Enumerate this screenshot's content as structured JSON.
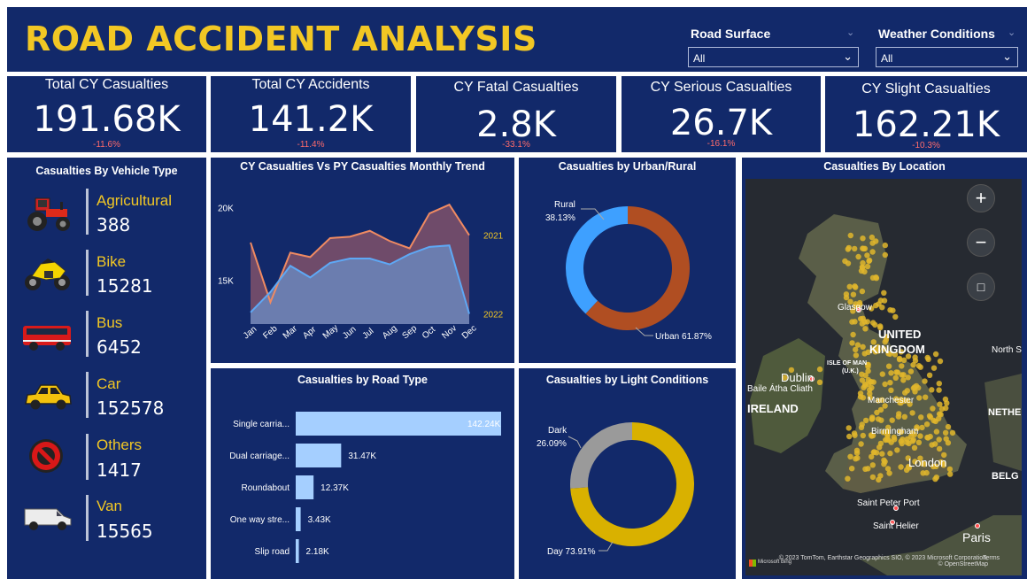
{
  "title": "ROAD ACCIDENT ANALYSIS",
  "filters": [
    {
      "label": "Road Surface",
      "value": "All"
    },
    {
      "label": "Weather Conditions",
      "value": "All"
    }
  ],
  "kpis": [
    {
      "title": "Total CY Casualties",
      "value": "191.68K",
      "delta": "-11.6%"
    },
    {
      "title": "Total CY Accidents",
      "value": "141.2K",
      "delta": "-11.4%"
    },
    {
      "title": "CY Fatal Casualties",
      "value": "2.8K",
      "delta": "-33.1%"
    },
    {
      "title": "CY Serious Casualties",
      "value": "26.7K",
      "delta": "-16.1%"
    },
    {
      "title": "CY Slight Casualties",
      "value": "162.21K",
      "delta": "-10.3%"
    }
  ],
  "vehicles": {
    "title": "Casualties By Vehicle Type",
    "items": [
      {
        "name": "Agricultural",
        "value": "388",
        "icon": "tractor-icon"
      },
      {
        "name": "Bike",
        "value": "15281",
        "icon": "motorbike-icon"
      },
      {
        "name": "Bus",
        "value": "6452",
        "icon": "bus-icon"
      },
      {
        "name": "Car",
        "value": "152578",
        "icon": "car-icon"
      },
      {
        "name": "Others",
        "value": "1417",
        "icon": "no-entry-icon"
      },
      {
        "name": "Van",
        "value": "15565",
        "icon": "van-icon"
      }
    ]
  },
  "colors": {
    "background": "#12296a",
    "accent": "#f2c724",
    "delta_negative": "#ff6b6b",
    "cy_line": "#ef8a62",
    "py_area": "#5ea8f5",
    "rural": "#3ea0ff",
    "urban": "#b04e22",
    "dark": "#9a9a9a",
    "day": "#d9b100",
    "road_bar": "#a5cfff"
  },
  "chart_data": [
    {
      "type": "area",
      "title": "CY Casualties Vs PY Casualties Monthly Trend",
      "categories": [
        "Jan",
        "Feb",
        "Mar",
        "Apr",
        "May",
        "Jun",
        "Jul",
        "Aug",
        "Sep",
        "Oct",
        "Nov",
        "Dec"
      ],
      "series": [
        {
          "name": "2021",
          "values": [
            17600,
            13500,
            16900,
            16600,
            17900,
            18000,
            18400,
            17700,
            17200,
            19600,
            20200,
            18100
          ]
        },
        {
          "name": "2022",
          "values": [
            12800,
            14200,
            16000,
            15200,
            16200,
            16500,
            16500,
            16100,
            16800,
            17300,
            17400,
            12700
          ]
        }
      ],
      "yticks": [
        "20K",
        "15K"
      ],
      "ylim": [
        12000,
        21000
      ]
    },
    {
      "type": "pie",
      "title": "Casualties by Urban/Rural",
      "labels": [
        "Rural",
        "Urban"
      ],
      "values": [
        38.13,
        61.87
      ],
      "value_labels": [
        "38.13%",
        "61.87%"
      ]
    },
    {
      "type": "bar",
      "title": "Casualties by Road Type",
      "categories": [
        "Single carria...",
        "Dual carriage...",
        "Roundabout",
        "One way stre...",
        "Slip road"
      ],
      "values": [
        142.24,
        31.47,
        12.37,
        3.43,
        2.18
      ],
      "value_labels": [
        "142.24K",
        "31.47K",
        "12.37K",
        "3.43K",
        "2.18K"
      ]
    },
    {
      "type": "pie",
      "title": "Casualties by Light Conditions",
      "labels": [
        "Dark",
        "Day"
      ],
      "values": [
        26.09,
        73.91
      ],
      "value_labels": [
        "26.09%",
        "73.91%"
      ]
    }
  ],
  "map": {
    "title": "Casualties By Location",
    "labels": [
      "Glasgow",
      "UNITED",
      "KINGDOM",
      "ISLE OF MAN",
      "(U.K.)",
      "Dublin",
      "Baile Átha Cliath",
      "IRELAND",
      "Manchester",
      "Birmingham",
      "London",
      "North S",
      "NETHE",
      "BELG",
      "Saint Peter Port",
      "Saint Helier",
      "Paris"
    ],
    "attribution": "© 2023 TomTom, Earthstar Geographics SIO, © 2023 Microsoft Corporation, © OpenStreetMap",
    "terms": "Terms",
    "logo": "Microsoft Bing"
  }
}
